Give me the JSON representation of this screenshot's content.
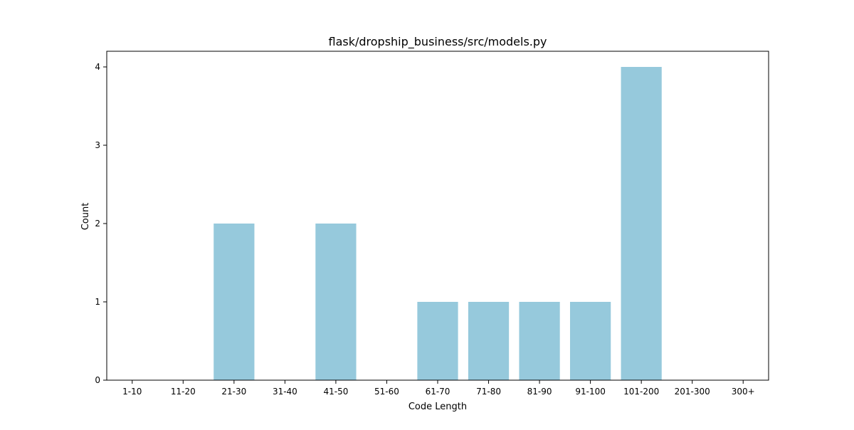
{
  "chart_data": {
    "type": "bar",
    "title": "flask/dropship_business/src/models.py",
    "xlabel": "Code Length",
    "ylabel": "Count",
    "categories": [
      "1-10",
      "11-20",
      "21-30",
      "31-40",
      "41-50",
      "51-60",
      "61-70",
      "71-80",
      "81-90",
      "91-100",
      "101-200",
      "201-300",
      "300+"
    ],
    "values": [
      0,
      0,
      2,
      0,
      2,
      0,
      1,
      1,
      1,
      1,
      4,
      0,
      0
    ],
    "yticks": [
      0,
      1,
      2,
      3,
      4
    ],
    "ylim": [
      0,
      4.2
    ],
    "grid": false,
    "legend": "none",
    "bar_color": "#96c9dc"
  }
}
